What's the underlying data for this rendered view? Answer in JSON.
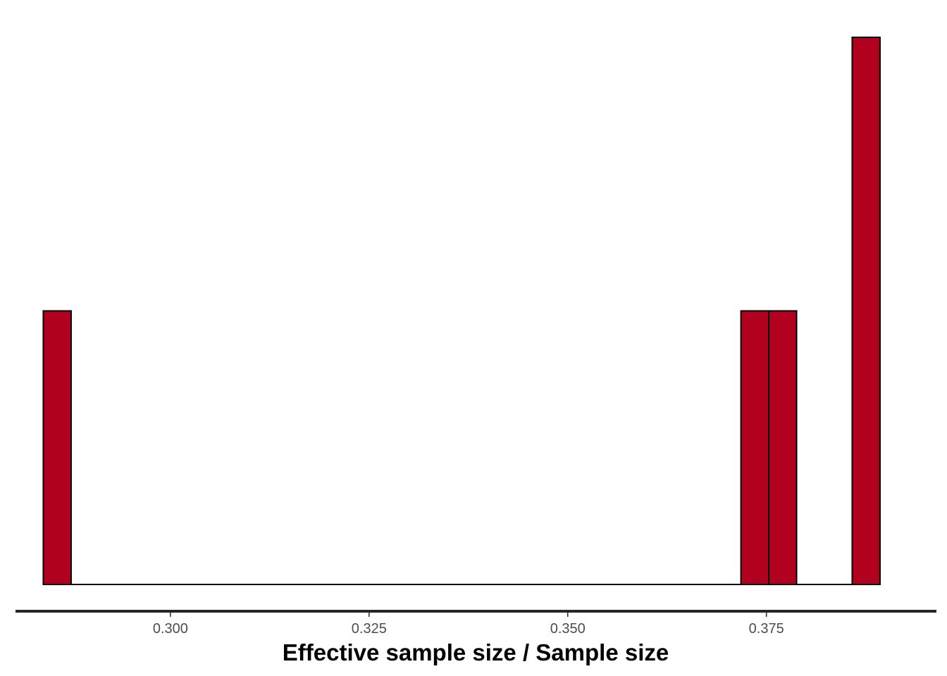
{
  "chart_data": {
    "type": "bar",
    "subtype": "histogram",
    "title": "",
    "xlabel": "Effective sample size / Sample size",
    "ylabel": "",
    "bins": [
      {
        "x0": 0.284,
        "x1": 0.2875,
        "count": 1
      },
      {
        "x0": 0.3718,
        "x1": 0.3753,
        "count": 1
      },
      {
        "x0": 0.3753,
        "x1": 0.3788,
        "count": 1
      },
      {
        "x0": 0.3858,
        "x1": 0.3893,
        "count": 2
      }
    ],
    "baseline": {
      "x0": 0.284,
      "x1": 0.3893
    },
    "xlim": [
      0.2805,
      0.3964
    ],
    "ylim": [
      0,
      2
    ],
    "x_ticks": [
      0.3,
      0.325,
      0.35,
      0.375
    ],
    "x_tick_labels": [
      "0.300",
      "0.325",
      "0.350",
      "0.375"
    ],
    "grid": false,
    "legend": "none",
    "colors": {
      "bar_fill": "#b2001f",
      "bar_stroke": "#000000",
      "axis_line": "#262626",
      "tick_text": "#4d4d4d",
      "title_text": "#000000"
    }
  }
}
